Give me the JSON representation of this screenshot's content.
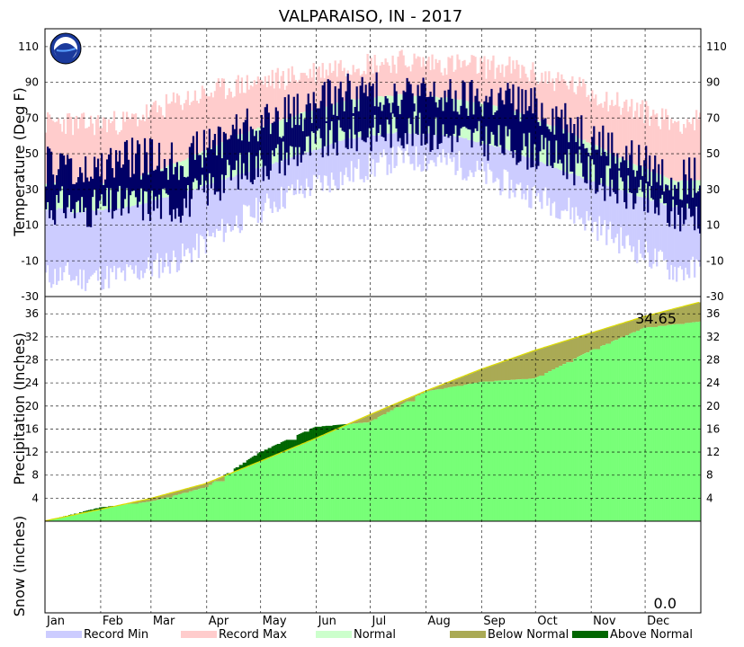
{
  "chart_data": {
    "type": "area",
    "title": "VALPARAISO, IN - 2017",
    "months": [
      "Jan",
      "Feb",
      "Mar",
      "Apr",
      "May",
      "Jun",
      "Jul",
      "Aug",
      "Sep",
      "Oct",
      "Nov",
      "Dec"
    ],
    "month_days": [
      31,
      28,
      31,
      30,
      31,
      30,
      31,
      31,
      30,
      31,
      30,
      31
    ],
    "panels": [
      {
        "name": "temperature",
        "ylabel": "Temperature (Deg F)",
        "ylim": [
          -30,
          120
        ],
        "ticks": [
          -30,
          -10,
          10,
          30,
          50,
          70,
          90,
          110
        ],
        "monthly": {
          "record_min": [
            -20,
            -18,
            -8,
            12,
            28,
            38,
            48,
            45,
            32,
            20,
            2,
            -15
          ],
          "record_max": [
            66,
            68,
            80,
            88,
            93,
            100,
            102,
            100,
            98,
            90,
            78,
            68
          ],
          "normal_low": [
            17,
            20,
            28,
            38,
            48,
            58,
            62,
            60,
            52,
            40,
            30,
            20
          ],
          "normal_high": [
            31,
            35,
            46,
            60,
            71,
            80,
            83,
            81,
            75,
            63,
            48,
            35
          ],
          "observed_low": [
            18,
            22,
            22,
            40,
            50,
            60,
            64,
            60,
            55,
            46,
            30,
            16
          ],
          "observed_high": [
            35,
            48,
            46,
            64,
            72,
            84,
            84,
            80,
            80,
            70,
            50,
            36
          ]
        }
      },
      {
        "name": "precipitation",
        "ylabel": "Precipitation (Inches)",
        "ylim": [
          0,
          39
        ],
        "ticks": [
          4,
          8,
          12,
          16,
          20,
          24,
          28,
          32,
          36
        ],
        "normal_cumulative_month_end": [
          2.0,
          3.9,
          6.5,
          10.3,
          14.3,
          18.4,
          22.5,
          26.3,
          29.6,
          32.6,
          35.5,
          38.0
        ],
        "observed_cumulative_month_end": [
          2.4,
          3.4,
          5.9,
          12.0,
          16.4,
          17.2,
          22.5,
          24.2,
          24.8,
          29.6,
          33.6,
          34.65
        ],
        "annotation": "34.65"
      },
      {
        "name": "snow",
        "ylabel": "Snow (inches)",
        "annotation": "0.0"
      }
    ],
    "legend": [
      {
        "label": "Record Min",
        "color": "#ccccff"
      },
      {
        "label": "Record Max",
        "color": "#ffcccc"
      },
      {
        "label": "Normal",
        "color": "#ccffcc"
      },
      {
        "label": "Below Normal",
        "color": "#aaaa55"
      },
      {
        "label": "Above Normal",
        "color": "#006600"
      }
    ],
    "colors": {
      "observed_temp": "#000066",
      "normal_precip": "#77ff77",
      "normal_line": "#dddd00"
    }
  }
}
